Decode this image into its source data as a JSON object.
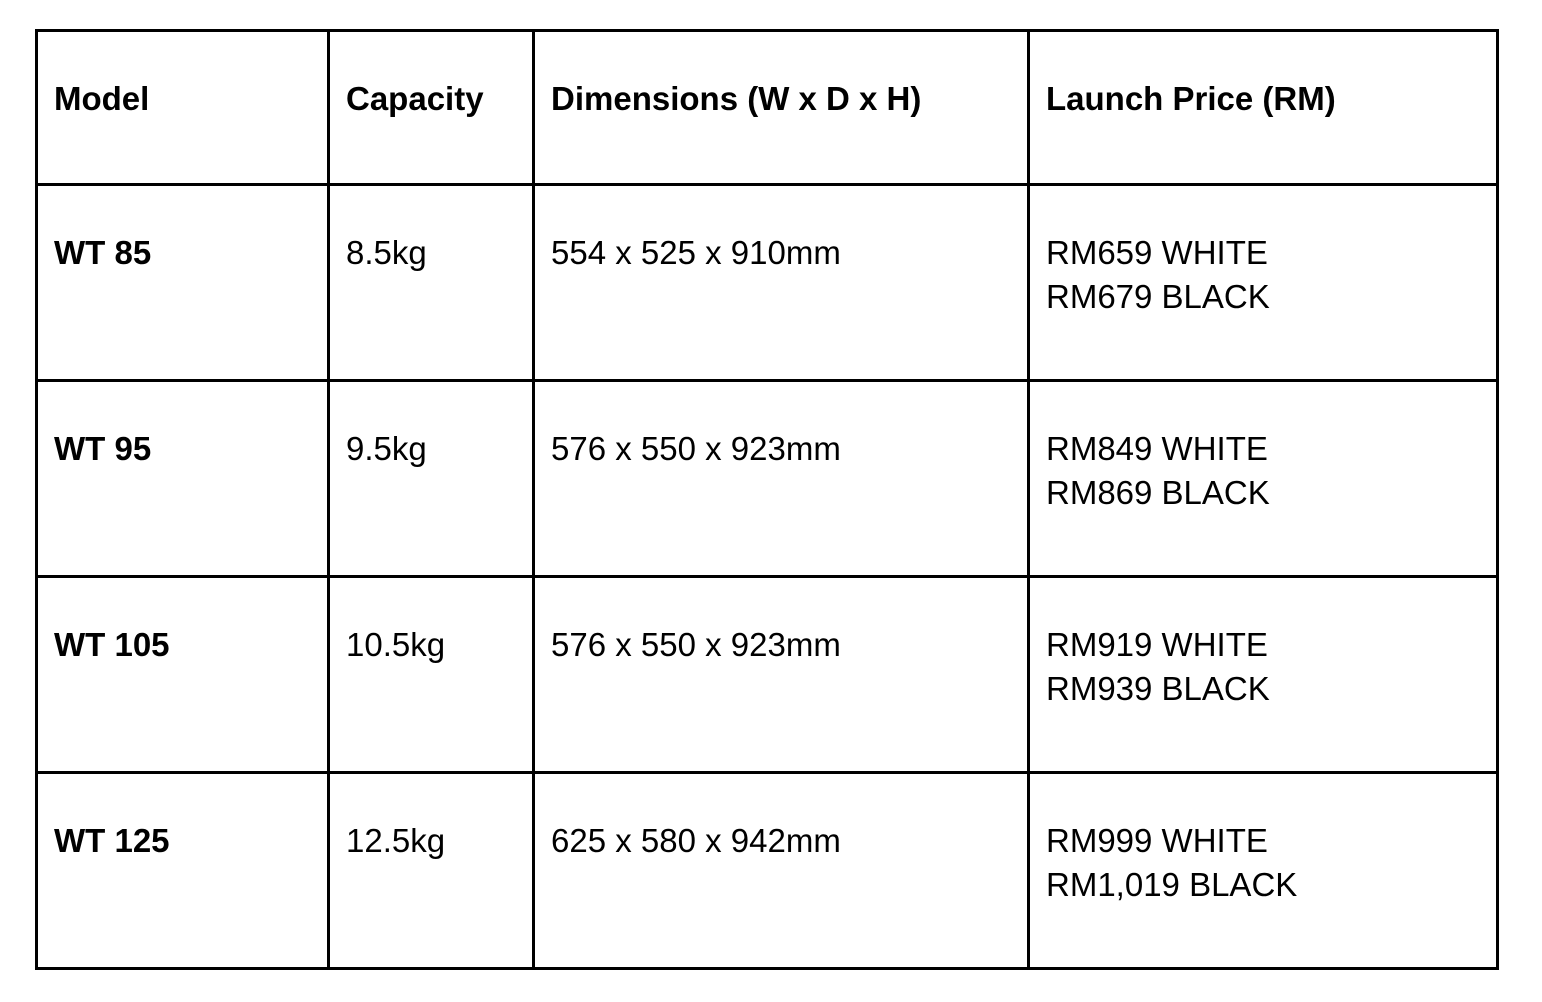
{
  "table": {
    "headers": [
      "Model",
      "Capacity",
      "Dimensions (W x D x H)",
      "Launch Price (RM)"
    ],
    "rows": [
      {
        "model": "WT 85",
        "capacity": "8.5kg",
        "dimensions": "554 x 525 x 910mm",
        "price_white": "RM659 WHITE",
        "price_black": "RM679 BLACK"
      },
      {
        "model": "WT 95",
        "capacity": "9.5kg",
        "dimensions": "576 x 550 x 923mm",
        "price_white": "RM849 WHITE",
        "price_black": "RM869 BLACK"
      },
      {
        "model": "WT 105",
        "capacity": "10.5kg",
        "dimensions": "576 x 550 x 923mm",
        "price_white": "RM919 WHITE",
        "price_black": "RM939 BLACK"
      },
      {
        "model": "WT 125",
        "capacity": "12.5kg",
        "dimensions": "625 x 580 x 942mm",
        "price_white": "RM999 WHITE",
        "price_black": "RM1,019 BLACK"
      }
    ]
  }
}
